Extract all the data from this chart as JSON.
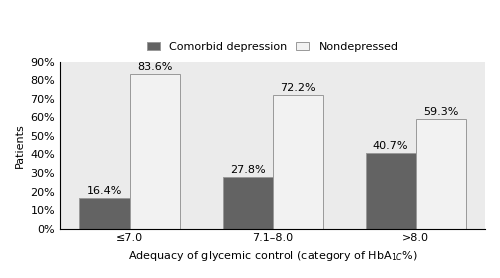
{
  "categories": [
    "≤7.0",
    "7.1–8.0",
    ">8.0"
  ],
  "comorbid_values": [
    16.4,
    27.8,
    40.7
  ],
  "nondepressed_values": [
    83.6,
    72.2,
    59.3
  ],
  "comorbid_color": "#636363",
  "nondepressed_color": "#f2f2f2",
  "bar_edge_color": "#999999",
  "comorbid_label": "Comorbid depression",
  "nondepressed_label": "Nondepressed",
  "ylabel": "Patients",
  "ytick_labels": [
    "0%",
    "10%",
    "20%",
    "30%",
    "40%",
    "50%",
    "60%",
    "70%",
    "80%",
    "90%"
  ],
  "ylim": [
    0,
    90
  ],
  "background_color": "#ebebeb",
  "bar_width": 0.35,
  "label_fontsize": 8,
  "tick_fontsize": 8,
  "annotation_fontsize": 8
}
